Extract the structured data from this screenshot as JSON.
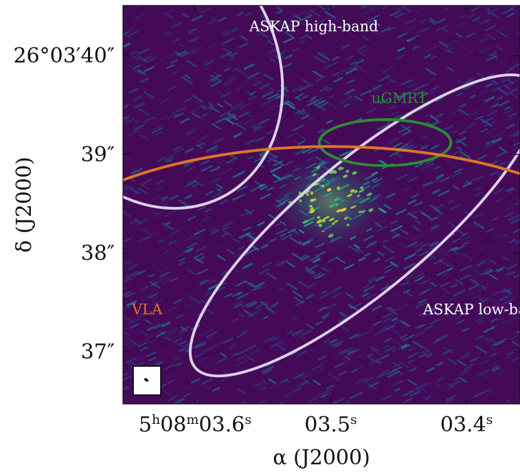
{
  "chart_data": {
    "type": "image",
    "colormap": "viridis",
    "xlabel": "α (J2000)",
    "ylabel": "δ (J2000)",
    "x_ticks": [
      {
        "value": 0.6,
        "label": "5h08m03.6s"
      },
      {
        "value": 0.5,
        "label": "03.5s"
      },
      {
        "value": 0.4,
        "label": "03.4s"
      }
    ],
    "y_ticks": [
      {
        "value": 40,
        "label": "26°03′40″"
      },
      {
        "value": 39,
        "label": "39″"
      },
      {
        "value": 38,
        "label": "38″"
      },
      {
        "value": 37,
        "label": "37″"
      }
    ],
    "xlim": [
      0.6531,
      0.3606
    ],
    "ylim": [
      36.47,
      40.51
    ],
    "regions": [
      {
        "name": "ASKAP high-band",
        "color": "#ddd0ea",
        "center": [
          0.63,
          39.9
        ],
        "semi_axes": [
          0.09,
          1.5
        ],
        "angle_deg": -28
      },
      {
        "name": "ASKAP low-band",
        "color": "#ddd0ea",
        "center": [
          0.475,
          38.28
        ],
        "semi_axes": [
          0.163,
          0.655
        ],
        "angle_deg": -40
      },
      {
        "name": "uGMRT",
        "color": "#2e8b32",
        "center": [
          0.46,
          39.12
        ],
        "semi_axes": [
          0.0485,
          0.233
        ],
        "angle_deg": 0
      },
      {
        "name": "VLA",
        "color": "#e07428",
        "center": [
          0.5,
          37.6
        ],
        "semi_axes": [
          0.24,
          1.48
        ],
        "angle_deg": 0
      }
    ],
    "region_labels": [
      {
        "text": "ASKAP high-band",
        "color": "#ffffff",
        "x": 0.56,
        "y": 40.25
      },
      {
        "text": "uGMRT",
        "color": "#2e8b32",
        "x": 0.47,
        "y": 39.52
      },
      {
        "text": "VLA",
        "color": "#e07428",
        "x": 0.6465,
        "y": 37.38
      },
      {
        "text": "ASKAP low-band",
        "color": "#ffffff",
        "x": 0.432,
        "y": 37.38
      }
    ],
    "bright_source": {
      "x": 0.5,
      "y": 38.52
    }
  },
  "beam_inset": {
    "label": "restoring beam"
  }
}
